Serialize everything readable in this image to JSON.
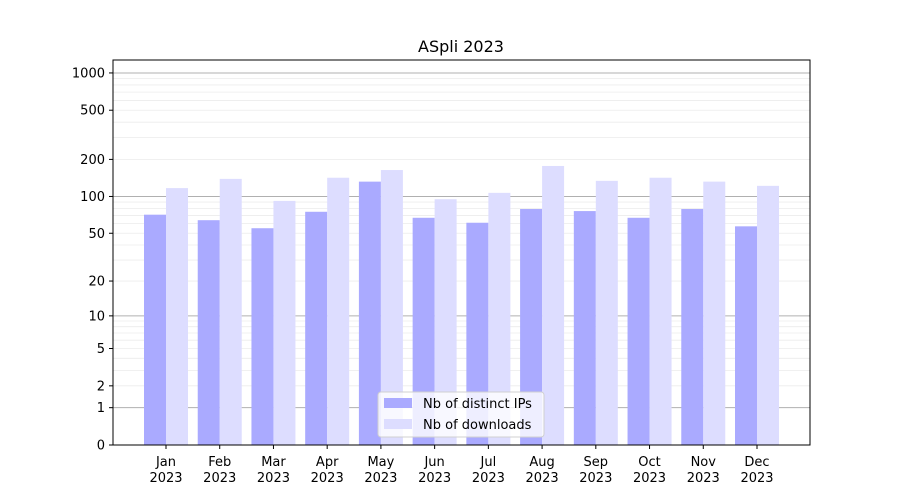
{
  "chart_data": {
    "type": "bar",
    "title": "ASpli 2023",
    "xlabel": "",
    "ylabel": "",
    "y_scale": "log10(1+y)",
    "ylim": [
      0,
      1300
    ],
    "yticks": [
      0,
      1,
      2,
      5,
      10,
      20,
      50,
      100,
      200,
      500,
      1000
    ],
    "grid": true,
    "legend_placement": "bottom-center",
    "categories": [
      "Jan\n2023",
      "Feb\n2023",
      "Mar\n2023",
      "Apr\n2023",
      "May\n2023",
      "Jun\n2023",
      "Jul\n2023",
      "Aug\n2023",
      "Sep\n2023",
      "Oct\n2023",
      "Nov\n2023",
      "Dec\n2023"
    ],
    "series": [
      {
        "name": "Nb of distinct IPs",
        "color": "#aaaaff",
        "values": [
          71,
          64,
          55,
          75,
          132,
          67,
          61,
          79,
          76,
          67,
          79,
          57
        ]
      },
      {
        "name": "Nb of downloads",
        "color": "#ddddff",
        "values": [
          117,
          139,
          92,
          142,
          164,
          95,
          107,
          177,
          134,
          142,
          132,
          122
        ]
      }
    ]
  }
}
